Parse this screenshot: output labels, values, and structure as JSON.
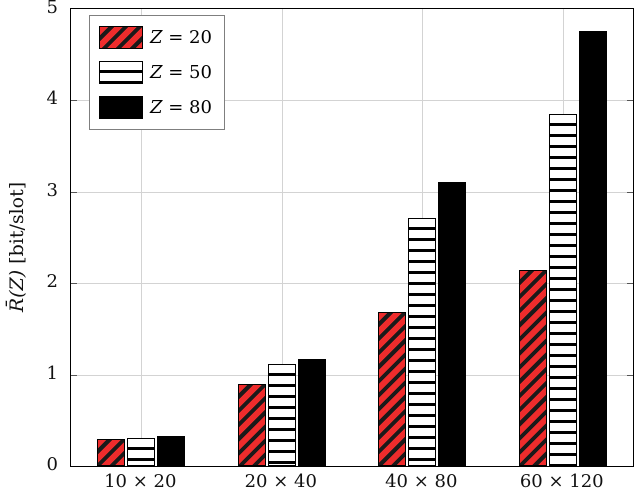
{
  "figure": {
    "background": "#ffffff",
    "frame_color": "#000000",
    "grid_color": "#d3d3d3",
    "legend_border_color": "#7f7f7f"
  },
  "axes": {
    "y_label_math": "R̄(Z)",
    "y_label_unit": "[bit/slot]",
    "y_tick_labels": [
      "0",
      "1",
      "2",
      "3",
      "4",
      "5"
    ]
  },
  "chart_data": {
    "type": "bar",
    "title": "",
    "xlabel": "",
    "ylabel": "R̄(Z) [bit/slot]",
    "ylim": [
      0,
      5
    ],
    "y_ticks": [
      0,
      1,
      2,
      3,
      4,
      5
    ],
    "grid": true,
    "legend_position": "top-left",
    "categories": [
      "10 × 20",
      "20 × 40",
      "40 × 80",
      "60 × 120"
    ],
    "series": [
      {
        "name": "Z = 20",
        "pattern": "red-diagonal-hatch",
        "fill": "#ee2c2c",
        "hatch_color": "#1a1a1a",
        "values": [
          0.3,
          0.9,
          1.68,
          2.15
        ]
      },
      {
        "name": "Z = 50",
        "pattern": "white-horizontal-lines",
        "fill": "#ffffff",
        "hatch_color": "#000000",
        "values": [
          0.31,
          1.12,
          2.71,
          3.85
        ]
      },
      {
        "name": "Z = 80",
        "pattern": "solid-black",
        "fill": "#000000",
        "hatch_color": "#000000",
        "values": [
          0.33,
          1.17,
          3.11,
          4.76
        ]
      }
    ]
  }
}
